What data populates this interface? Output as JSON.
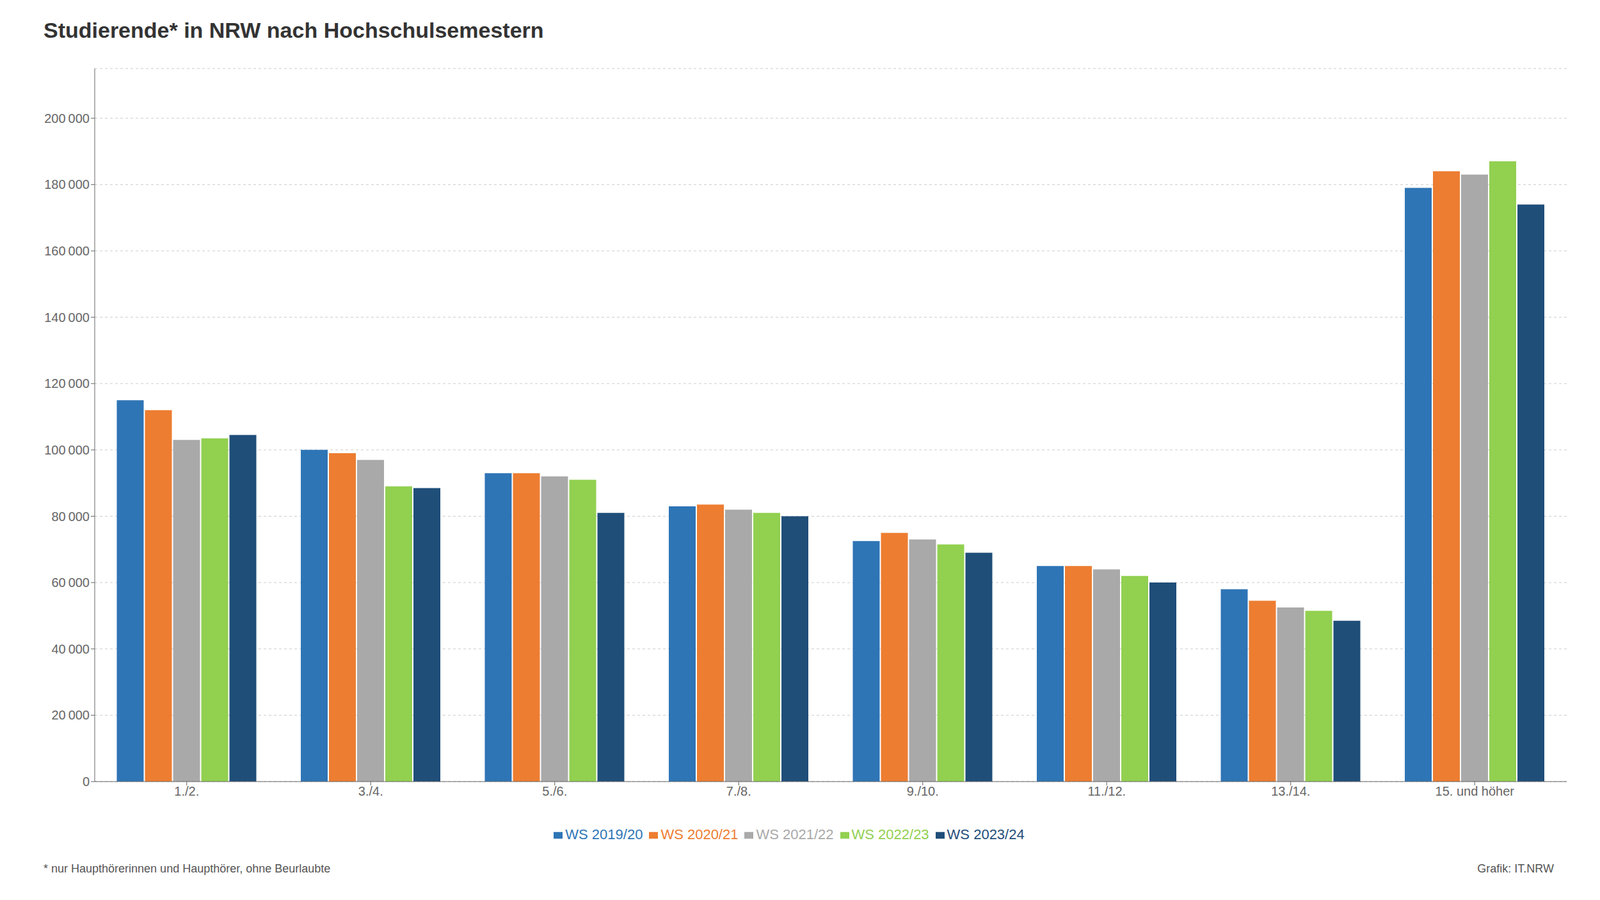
{
  "chart_data": {
    "type": "bar",
    "title": "Studierende* in NRW nach Hochschulsemestern",
    "categories": [
      "1./2.",
      "3./4.",
      "5./6.",
      "7./8.",
      "9./10.",
      "11./12.",
      "13./14.",
      "15. und höher"
    ],
    "series": [
      {
        "name": "WS 2019/20",
        "color": "#2E75B6",
        "values": [
          115000,
          100000,
          93000,
          83000,
          72500,
          65000,
          58000,
          179000
        ]
      },
      {
        "name": "WS 2020/21",
        "color": "#ED7D31",
        "values": [
          112000,
          99000,
          93000,
          83500,
          75000,
          65000,
          54500,
          184000
        ]
      },
      {
        "name": "WS 2021/22",
        "color": "#A9A9A9",
        "values": [
          103000,
          97000,
          92000,
          82000,
          73000,
          64000,
          52500,
          183000
        ]
      },
      {
        "name": "WS 2022/23",
        "color": "#92D050",
        "values": [
          103500,
          89000,
          91000,
          81000,
          71500,
          62000,
          51500,
          187000
        ]
      },
      {
        "name": "WS 2023/24",
        "color": "#1F4E79",
        "values": [
          104500,
          88500,
          81000,
          80000,
          69000,
          60000,
          48500,
          174000
        ]
      }
    ],
    "ylim": [
      0,
      215000
    ],
    "yticks": [
      0,
      {
        "value": 20000,
        "label": "20 000"
      },
      {
        "value": 40000,
        "label": "40 000"
      },
      {
        "value": 60000,
        "label": "60 000"
      },
      {
        "value": 80000,
        "label": "80 000"
      },
      {
        "value": 100000,
        "label": "100 000"
      },
      {
        "value": 120000,
        "label": "120 000"
      },
      {
        "value": 140000,
        "label": "140 000"
      },
      {
        "value": 160000,
        "label": "160 000"
      },
      {
        "value": 180000,
        "label": "180 000"
      },
      {
        "value": 200000,
        "label": "200 000"
      }
    ],
    "grid": true,
    "legend": "bottom",
    "annotations": [
      "* nur Haupthörerinnen und Haupthörer, ohne Beurlaubte",
      "Grafik: IT.NRW"
    ]
  }
}
